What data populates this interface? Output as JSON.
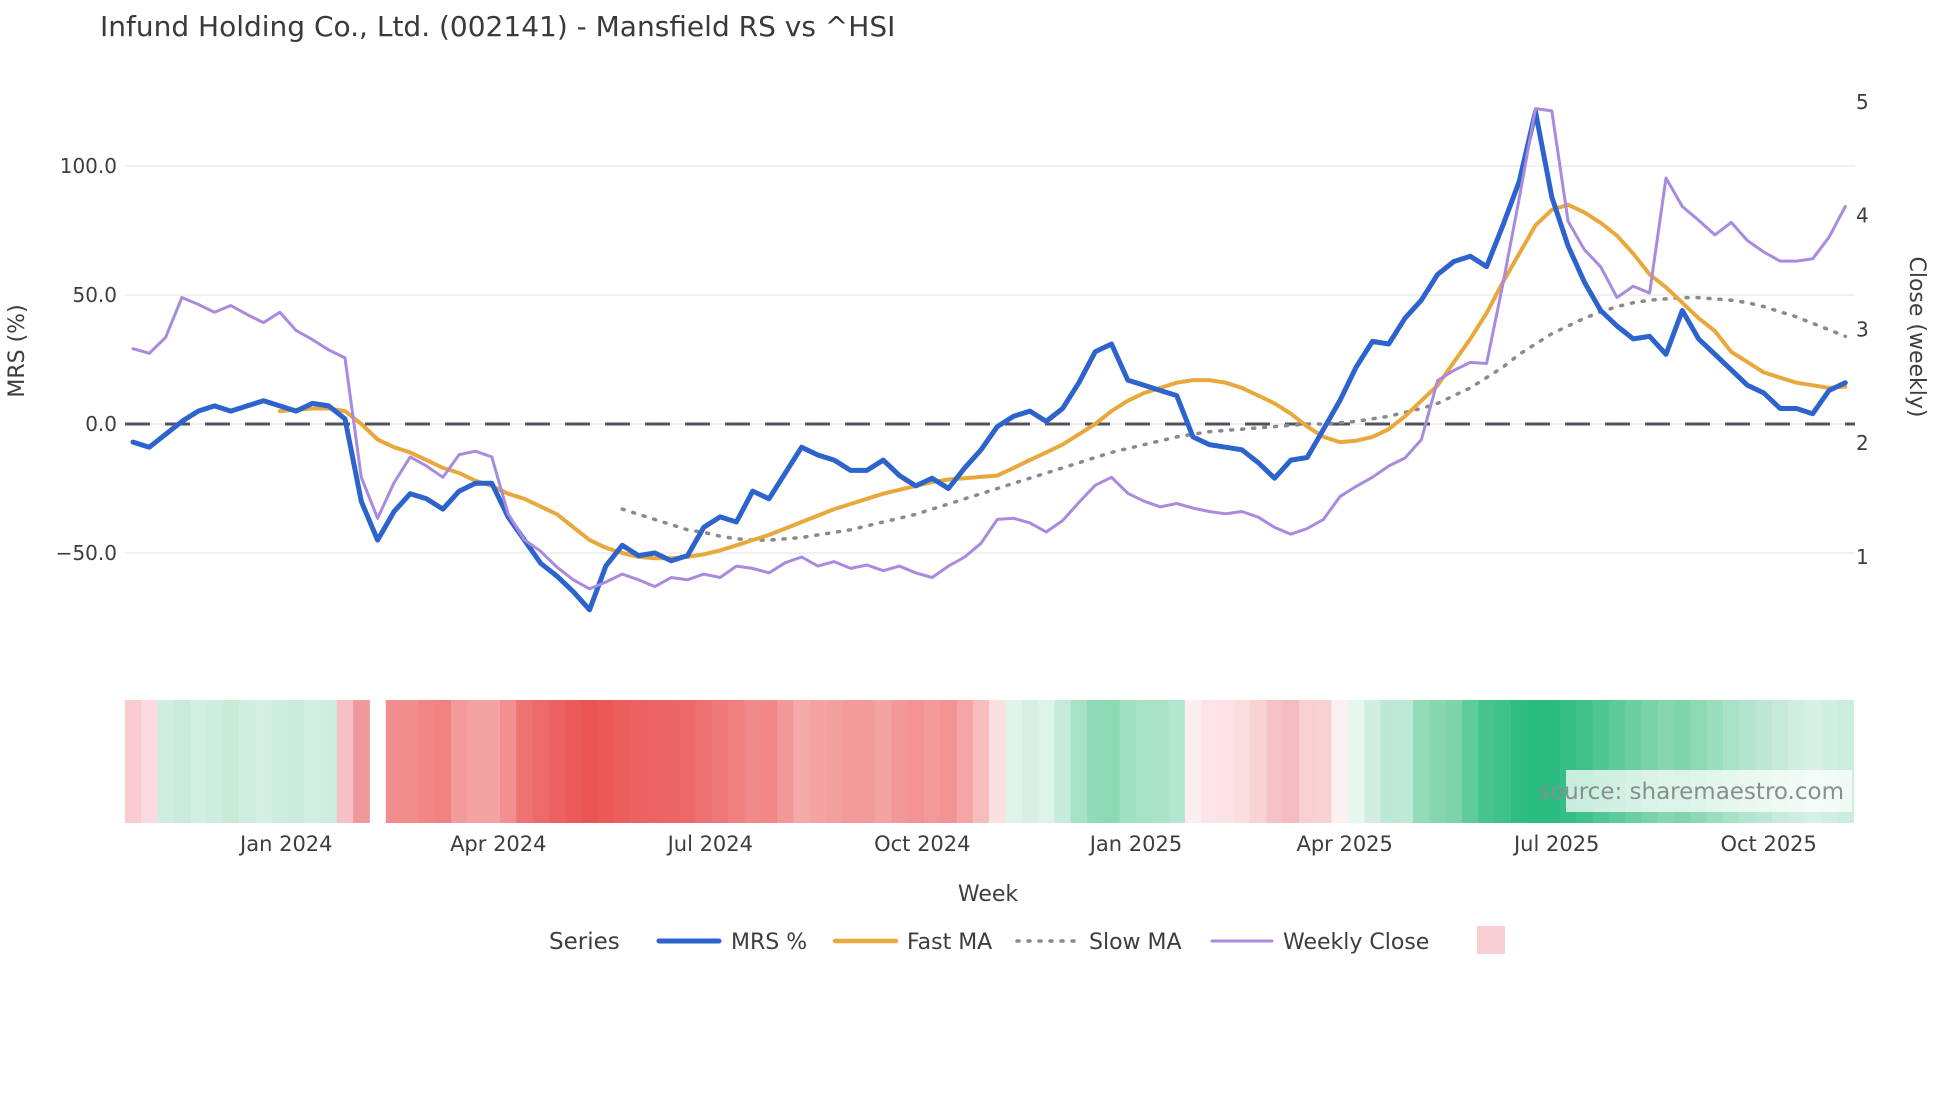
{
  "title": "Infund Holding Co., Ltd. (002141) - Mansfield RS vs ^HSI",
  "source_note": "source: sharemaestro.com",
  "axes": {
    "left": {
      "title": "MRS (%)",
      "ticks": [
        {
          "label": "100.0",
          "value": 100
        },
        {
          "label": "50.0",
          "value": 50
        },
        {
          "label": "0.0",
          "value": 0
        },
        {
          "label": "−50.0",
          "value": -50
        }
      ]
    },
    "right": {
      "title": "Close (weekly)",
      "ticks": [
        {
          "label": "5",
          "value": 5
        },
        {
          "label": "4",
          "value": 4
        },
        {
          "label": "3",
          "value": 3
        },
        {
          "label": "2",
          "value": 2
        },
        {
          "label": "1",
          "value": 1
        }
      ]
    },
    "x": {
      "title": "Week",
      "ticks": [
        {
          "label": "Jan 2024",
          "week": 9.4
        },
        {
          "label": "Apr 2024",
          "week": 22.4
        },
        {
          "label": "Jul 2024",
          "week": 35.4
        },
        {
          "label": "Oct 2024",
          "week": 48.4
        },
        {
          "label": "Jan 2025",
          "week": 61.5
        },
        {
          "label": "Apr 2025",
          "week": 74.3
        },
        {
          "label": "Jul 2025",
          "week": 87.3
        },
        {
          "label": "Oct 2025",
          "week": 100.3
        }
      ]
    }
  },
  "legend": {
    "title": "Series",
    "items": [
      {
        "label": "MRS %",
        "color": "#2d63cd",
        "dash": "solid"
      },
      {
        "label": "Fast MA",
        "color": "#e9a83b",
        "dash": "solid"
      },
      {
        "label": "Slow MA",
        "color": "#8a8a8a",
        "dash": "dotted"
      },
      {
        "label": "Weekly Close",
        "color": "#a98ade",
        "dash": "solid"
      },
      {
        "label": "",
        "color": "#f9ced3",
        "dash": "swatch"
      }
    ]
  },
  "colors": {
    "background": "#ffffff",
    "gridline": "#ececef",
    "zero_line": "#52525c",
    "tick_text": "#3d3d3d",
    "title_text": "#3a3a3a",
    "source_text": "#878f91",
    "mrs": "#2d63cd",
    "fast_ma": "#e9a83b",
    "slow_ma": "#8a8a8a",
    "weekly_close": "#a98ade",
    "heatmap_legend_swatch": "#f9ced3"
  },
  "chart_data": {
    "type": "line",
    "title": "Infund Holding Co., Ltd. (002141) - Mansfield RS vs ^HSI",
    "xlabel": "Week",
    "ylabel_left": "MRS (%)",
    "ylabel_right": "Close (weekly)",
    "x_unit": "week_index",
    "start_week_approx": "2023-10-30",
    "n_weeks": 106,
    "ylim_left": [
      -80,
      135
    ],
    "ylim_right": [
      0.6,
      5.1
    ],
    "grid": "horizontal-only",
    "legend_position": "bottom-center",
    "zero_reference_line_left_axis": 0,
    "series": [
      {
        "name": "MRS %",
        "axis": "left",
        "color": "#2d63cd",
        "style": "solid",
        "values": [
          -7,
          -9,
          -4,
          1,
          5,
          7,
          5,
          7,
          9,
          7,
          5,
          8,
          7,
          2,
          -30,
          -45,
          -34,
          -27,
          -29,
          -33,
          -26,
          -23,
          -23,
          -36,
          -45,
          -54,
          -59,
          -65,
          -72,
          -55,
          -47,
          -51,
          -50,
          -53,
          -51,
          -40,
          -36,
          -38,
          -26,
          -29,
          -19,
          -9,
          -12,
          -14,
          -18,
          -18,
          -14,
          -20,
          -24,
          -21,
          -25,
          -17,
          -10,
          -1,
          3,
          5,
          1,
          6,
          16,
          28,
          31,
          17,
          15,
          13,
          11,
          -5,
          -8,
          -9,
          -10,
          -15,
          -21,
          -14,
          -13,
          -2,
          9,
          22,
          32,
          31,
          41,
          48,
          58,
          63,
          65,
          61,
          77,
          94,
          121,
          88,
          69,
          55,
          44,
          38,
          33,
          34,
          27,
          44,
          33,
          27,
          21,
          15,
          12,
          6,
          6,
          4,
          13,
          16
        ]
      },
      {
        "name": "Fast MA",
        "axis": "left",
        "color": "#e9a83b",
        "style": "solid",
        "values": [
          null,
          null,
          null,
          null,
          null,
          null,
          null,
          null,
          null,
          5,
          5.5,
          6,
          6,
          5,
          0,
          -6,
          -9,
          -11,
          -14,
          -17,
          -19,
          -22,
          -24,
          -27,
          -29,
          -32,
          -35,
          -40,
          -45,
          -48,
          -50,
          -51.5,
          -52,
          -52,
          -51.5,
          -50.5,
          -49,
          -47,
          -45,
          -43,
          -40.5,
          -38,
          -35.5,
          -33,
          -31,
          -29,
          -27,
          -25.5,
          -24,
          -22.5,
          -21.5,
          -21,
          -20.5,
          -20,
          -17,
          -14,
          -11,
          -8,
          -4,
          0,
          5,
          9,
          12,
          14,
          16,
          17,
          17,
          16,
          14,
          11,
          8,
          4,
          -1,
          -5,
          -7,
          -6.5,
          -5,
          -2,
          3,
          9,
          15,
          24,
          33,
          43,
          55,
          66,
          77,
          83,
          85,
          82,
          78,
          73,
          66,
          58,
          53,
          47,
          41,
          36,
          28,
          24,
          20,
          18,
          16,
          15,
          14,
          14.5
        ]
      },
      {
        "name": "Slow MA",
        "axis": "left",
        "color": "#8a8a8a",
        "style": "dotted",
        "values": [
          null,
          null,
          null,
          null,
          null,
          null,
          null,
          null,
          null,
          null,
          null,
          null,
          null,
          null,
          null,
          null,
          null,
          null,
          null,
          null,
          null,
          null,
          null,
          null,
          null,
          null,
          null,
          null,
          null,
          null,
          -33,
          -35,
          -37,
          -39,
          -41,
          -42,
          -43.5,
          -44.5,
          -45,
          -45,
          -44.5,
          -44,
          -43,
          -42,
          -41,
          -39.5,
          -38,
          -36.5,
          -35,
          -33,
          -31,
          -29,
          -27,
          -25,
          -23,
          -21,
          -19,
          -17,
          -15,
          -13,
          -11,
          -9.5,
          -8,
          -6.5,
          -5,
          -4,
          -3,
          -2.5,
          -2,
          -1.5,
          -1,
          -0.5,
          0,
          0,
          0.5,
          1,
          2,
          3,
          4.5,
          6,
          8,
          11,
          14,
          18,
          22,
          27,
          31,
          35,
          38,
          41,
          43.5,
          45.5,
          47,
          48,
          48.5,
          49,
          49,
          48.5,
          48,
          47,
          45.5,
          43.5,
          41.5,
          39,
          36.5,
          34
        ]
      },
      {
        "name": "Weekly Close",
        "axis": "right",
        "color": "#a98ade",
        "style": "solid",
        "values": [
          2.83,
          2.79,
          2.93,
          3.28,
          3.22,
          3.15,
          3.21,
          3.13,
          3.06,
          3.15,
          2.99,
          2.91,
          2.82,
          2.75,
          1.7,
          1.34,
          1.65,
          1.88,
          1.8,
          1.7,
          1.9,
          1.93,
          1.88,
          1.38,
          1.15,
          1.05,
          0.91,
          0.8,
          0.72,
          0.78,
          0.85,
          0.8,
          0.74,
          0.82,
          0.8,
          0.85,
          0.82,
          0.92,
          0.9,
          0.86,
          0.95,
          1.0,
          0.92,
          0.96,
          0.9,
          0.93,
          0.88,
          0.92,
          0.86,
          0.82,
          0.92,
          1.0,
          1.12,
          1.33,
          1.34,
          1.3,
          1.22,
          1.32,
          1.48,
          1.63,
          1.7,
          1.56,
          1.49,
          1.44,
          1.47,
          1.43,
          1.4,
          1.38,
          1.4,
          1.35,
          1.26,
          1.2,
          1.25,
          1.33,
          1.53,
          1.62,
          1.7,
          1.8,
          1.87,
          2.03,
          2.55,
          2.64,
          2.71,
          2.7,
          3.4,
          4.15,
          4.94,
          4.92,
          3.95,
          3.7,
          3.55,
          3.28,
          3.38,
          3.32,
          4.33,
          4.08,
          3.96,
          3.83,
          3.94,
          3.78,
          3.68,
          3.6,
          3.6,
          3.62,
          3.81,
          4.08
        ]
      }
    ],
    "heatmap_strip": {
      "description": "weekly relative-strength heat cells under chart, one cell per week; null = missing week gap",
      "cell_colors": [
        "#f8ccd1",
        "#fbdbdf",
        "#cfeee0",
        "#c9ecda",
        "#d2efe2",
        "#cdedde",
        "#c8ebd8",
        "#cfeee0",
        "#d4f0e3",
        "#cdedde",
        "#c9ecda",
        "#d2efe2",
        "#cdedde",
        "#f6c1c6",
        "#f0989b",
        null,
        "#f28d8d",
        "#f28d8d",
        "#f08585",
        "#f08282",
        "#f39b9b",
        "#f4a3a3",
        "#f4a3a3",
        "#f29090",
        "#ee7474",
        "#ed6a6a",
        "#ec6262",
        "#ea5a5a",
        "#e95454",
        "#ea5858",
        "#eb5e5e",
        "#ec6262",
        "#ec6464",
        "#ed6666",
        "#ed6868",
        "#ee7272",
        "#ef7878",
        "#f08080",
        "#f18a8a",
        "#f18787",
        "#f39898",
        "#f5a9a9",
        "#f4a2a2",
        "#f49f9f",
        "#f39b9b",
        "#f39b9b",
        "#f4a3a3",
        "#f39898",
        "#f29292",
        "#f39999",
        "#f29292",
        "#f4a5a5",
        "#f7bcbc",
        "#fbe0e0",
        "#e0f4ea",
        "#d5f0e3",
        "#ddf3e8",
        "#c6ecd9",
        "#a5e2c6",
        "#8fdab8",
        "#8cd9b6",
        "#a0e0c2",
        "#a5e2c6",
        "#aae3c8",
        "#b3e6ce",
        "#fdeff0",
        "#fbe4e6",
        "#fbe2e4",
        "#fadedf",
        "#f8d3d5",
        "#f5c3c7",
        "#f4bcc0",
        "#f8cfd2",
        "#f8d1d4",
        "#fdf0f1",
        "#e7f6ef",
        "#d0efe1",
        "#bce9d4",
        "#bde9d5",
        "#93dcba",
        "#86d6b1",
        "#7ed3ab",
        "#5ecb9a",
        "#46c48e",
        "#3ec28a",
        "#2fbd83",
        "#2abc81",
        "#2abc81",
        "#35bf86",
        "#3fc189",
        "#4fc795",
        "#5cca9a",
        "#6bcfa2",
        "#79d2a9",
        "#86d6b1",
        "#80d4ad",
        "#8dd9b6",
        "#9adec0",
        "#a7e2c7",
        "#b2e5cd",
        "#bce8d3",
        "#c6ecd9",
        "#cfeee0",
        "#d6f1e4",
        "#d0efe1",
        "#cbeddc"
      ]
    }
  }
}
